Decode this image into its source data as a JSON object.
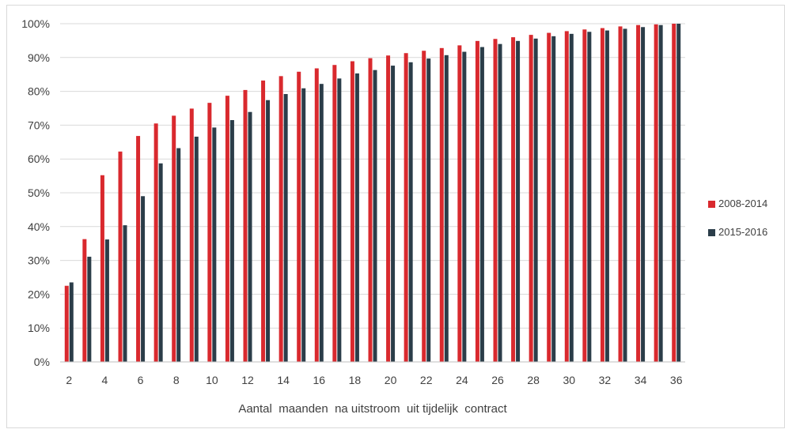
{
  "chart_data": {
    "type": "bar",
    "title": "",
    "xlabel": "Aantal  maanden  na uitstroom  uit tijdelijk  contract",
    "ylabel": "",
    "ylim": [
      0,
      100
    ],
    "y_ticks": [
      "0%",
      "10%",
      "20%",
      "30%",
      "40%",
      "50%",
      "60%",
      "70%",
      "80%",
      "90%",
      "100%"
    ],
    "x_tick_labels": [
      "2",
      "4",
      "6",
      "8",
      "10",
      "12",
      "14",
      "16",
      "18",
      "20",
      "22",
      "24",
      "26",
      "28",
      "30",
      "32",
      "34",
      "36"
    ],
    "categories": [
      2,
      3,
      4,
      5,
      6,
      7,
      8,
      9,
      10,
      11,
      12,
      13,
      14,
      15,
      16,
      17,
      18,
      19,
      20,
      21,
      22,
      23,
      24,
      25,
      26,
      27,
      28,
      29,
      30,
      31,
      32,
      33,
      34,
      35,
      36
    ],
    "series": [
      {
        "name": "2008-2014",
        "color": "#d9292e",
        "values": [
          22.5,
          36.3,
          55.2,
          62.2,
          66.8,
          70.5,
          72.8,
          74.9,
          76.6,
          78.7,
          80.4,
          83.2,
          84.5,
          85.8,
          86.8,
          87.8,
          88.9,
          89.8,
          90.6,
          91.3,
          92.0,
          92.8,
          93.6,
          94.9,
          95.5,
          96.0,
          96.7,
          97.3,
          97.8,
          98.3,
          98.7,
          99.2,
          99.6,
          99.8,
          100.0
        ]
      },
      {
        "name": "2015-2016",
        "color": "#2b3d49",
        "values": [
          23.5,
          31.1,
          36.2,
          40.4,
          49.0,
          58.7,
          63.2,
          66.6,
          69.3,
          71.5,
          73.9,
          77.4,
          79.2,
          80.9,
          82.2,
          83.8,
          85.3,
          86.3,
          87.6,
          88.6,
          89.7,
          90.7,
          91.7,
          93.1,
          94.0,
          94.9,
          95.6,
          96.3,
          97.0,
          97.6,
          98.0,
          98.5,
          99.0,
          99.6,
          100.0
        ]
      }
    ],
    "grid": true,
    "legend_position": "right"
  }
}
